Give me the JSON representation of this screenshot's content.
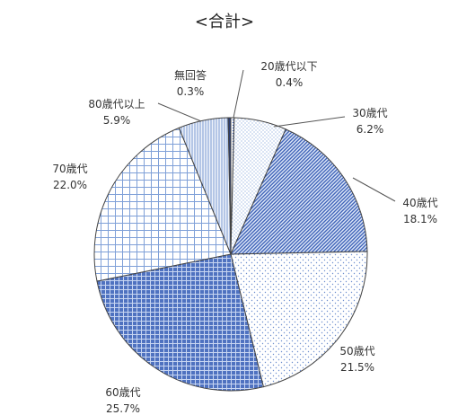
{
  "chart_data": {
    "type": "pie",
    "title": "<合計>",
    "legend": "none",
    "categories": [
      "20歳代以下",
      "30歳代",
      "40歳代",
      "50歳代",
      "60歳代",
      "70歳代",
      "80歳代以上",
      "無回答"
    ],
    "values": [
      0.4,
      6.2,
      18.1,
      21.5,
      25.7,
      22.0,
      5.9,
      0.3
    ],
    "value_labels": [
      "0.4%",
      "6.2%",
      "18.1%",
      "21.5%",
      "25.7%",
      "22.0%",
      "5.9%",
      "0.3%"
    ],
    "fill_patterns": [
      "fine-dots",
      "sparse-dots",
      "diagonal-hatch-blue",
      "light-dots",
      "blue-grid",
      "white-grid",
      "vertical-lines",
      "dense-diagonal"
    ],
    "colors": {
      "primary_blue": "#3f63b8",
      "light_blue": "#8fb2e6",
      "outline": "#444444"
    }
  }
}
